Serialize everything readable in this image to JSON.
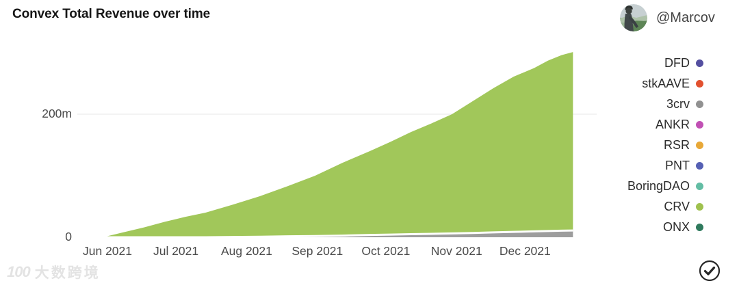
{
  "title": "Convex Total Revenue over time",
  "profile": {
    "handle": "@Marcov",
    "avatar_description": "person wearing cap overlooking green valley"
  },
  "legend": {
    "position": "right",
    "items": [
      {
        "label": "DFD",
        "color": "#544fa0"
      },
      {
        "label": "stkAAVE",
        "color": "#e2512f"
      },
      {
        "label": "3crv",
        "color": "#919191"
      },
      {
        "label": "ANKR",
        "color": "#c150b4"
      },
      {
        "label": "RSR",
        "color": "#e8a838"
      },
      {
        "label": "PNT",
        "color": "#5560b4"
      },
      {
        "label": "BoringDAO",
        "color": "#63bda4"
      },
      {
        "label": "CRV",
        "color": "#9fc14e"
      },
      {
        "label": "ONX",
        "color": "#2f7a5d"
      }
    ]
  },
  "chart_data": {
    "type": "area",
    "stacked": true,
    "title": "Convex Total Revenue over time",
    "xlabel": "",
    "ylabel": "",
    "grid": "single horizontal gridline at 200m",
    "x_unit": "days since 2021-06-01",
    "y_unit": "millions",
    "y_range": [
      0,
      320
    ],
    "x_ticks": [
      {
        "day": 0,
        "label": "Jun 2021"
      },
      {
        "day": 30,
        "label": "Jul 2021"
      },
      {
        "day": 61,
        "label": "Aug 2021"
      },
      {
        "day": 92,
        "label": "Sep 2021"
      },
      {
        "day": 122,
        "label": "Oct 2021"
      },
      {
        "day": 153,
        "label": "Nov 2021"
      },
      {
        "day": 183,
        "label": "Dec 2021"
      }
    ],
    "y_ticks": [
      {
        "value": 0,
        "label": "0"
      },
      {
        "value": 200,
        "label": "200m"
      }
    ],
    "x_days": [
      -2,
      7,
      16,
      25,
      34,
      43,
      55,
      67,
      79,
      91,
      103,
      115,
      124,
      133,
      142,
      151,
      160,
      169,
      178,
      187,
      193,
      199,
      204
    ],
    "series": [
      {
        "name": "3crv",
        "color": "#9d9d9d",
        "values": [
          0,
          0,
          0,
          0,
          0,
          0,
          0.4,
          0.8,
          1.5,
          2,
          2.7,
          3.7,
          4.3,
          5,
          5.6,
          6.2,
          7,
          7.9,
          8.7,
          9.6,
          10.2,
          10.7,
          11
        ]
      },
      {
        "name": "CRV",
        "color": "#a1c75a",
        "values": [
          0,
          8,
          16,
          25,
          33,
          40,
          52.6,
          66.2,
          81.5,
          98,
          118.3,
          136.3,
          150.7,
          166,
          179.4,
          193.8,
          214,
          234.1,
          252.3,
          265.4,
          276.8,
          285.3,
          290
        ]
      }
    ],
    "near_zero_series": [
      "DFD",
      "stkAAVE",
      "ANKR",
      "RSR",
      "PNT",
      "BoringDAO",
      "ONX"
    ],
    "peak_total_m": 301,
    "legend_position": "right"
  },
  "watermark": {
    "logo": "100",
    "text": "大数跨境"
  },
  "footer": {
    "icon": "check-circle"
  }
}
